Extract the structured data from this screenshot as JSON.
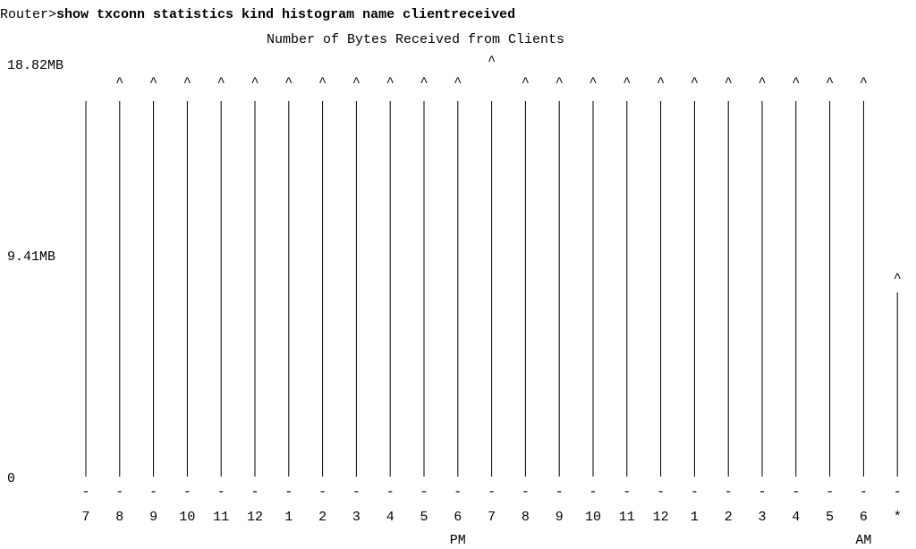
{
  "terminal": {
    "prompt": "Router>",
    "command": "show txconn statistics kind histogram name clientreceived"
  },
  "chart_data": {
    "type": "bar",
    "title": "Number of Bytes Received from Clients",
    "ylabel": "",
    "xlabel": "",
    "y_tick_labels": [
      "18.82MB",
      "9.41MB",
      "0"
    ],
    "y_ticks": [
      18.82,
      9.41,
      0
    ],
    "ylim": [
      0,
      18.82
    ],
    "y_unit": "MB",
    "categories": [
      "7",
      "8",
      "9",
      "10",
      "11",
      "12",
      "1",
      "2",
      "3",
      "4",
      "5",
      "6",
      "7",
      "8",
      "9",
      "10",
      "11",
      "12",
      "1",
      "2",
      "3",
      "4",
      "5",
      "6",
      "*"
    ],
    "values": [
      18.82,
      18.82,
      18.82,
      18.82,
      18.82,
      18.82,
      18.82,
      18.82,
      18.82,
      18.82,
      18.82,
      18.82,
      18.82,
      18.82,
      18.82,
      18.82,
      18.82,
      18.82,
      18.82,
      18.82,
      18.82,
      18.82,
      18.82,
      18.82,
      9.41
    ],
    "overflow": [
      false,
      true,
      true,
      true,
      true,
      true,
      true,
      true,
      true,
      true,
      true,
      true,
      true,
      true,
      true,
      true,
      true,
      true,
      true,
      true,
      true,
      true,
      true,
      true,
      true
    ],
    "x_period_labels": [
      {
        "label": "PM",
        "index": 11
      },
      {
        "label": "AM",
        "index": 23
      }
    ]
  }
}
